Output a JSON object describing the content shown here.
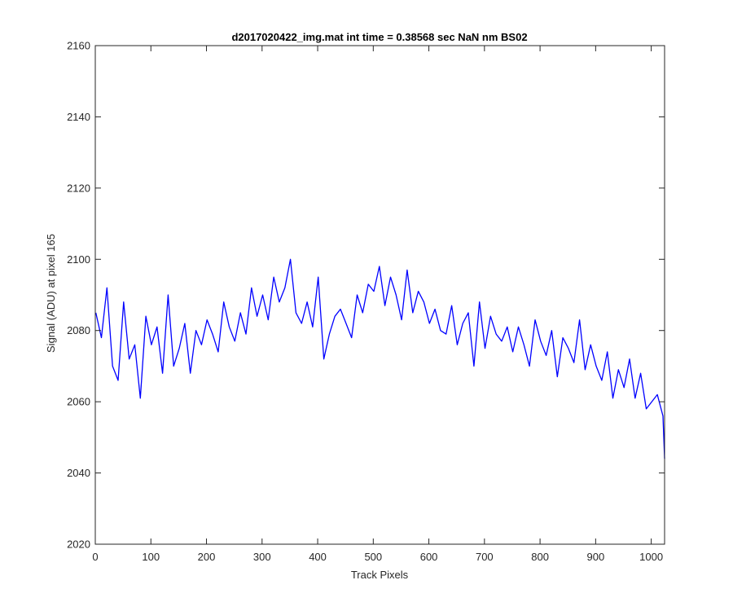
{
  "chart_data": {
    "type": "line",
    "title": "d2017020422_img.mat int time = 0.38568 sec  NaN nm BS02",
    "xlabel": "Track Pixels",
    "ylabel": "Signal (ADU) at pixel 165",
    "xlim": [
      0,
      1024
    ],
    "ylim": [
      2020,
      2160
    ],
    "xticks": [
      "0",
      "100",
      "200",
      "300",
      "400",
      "500",
      "600",
      "700",
      "800",
      "900",
      "1000"
    ],
    "yticks": [
      "2020",
      "2040",
      "2060",
      "2080",
      "2100",
      "2120",
      "2140",
      "2160"
    ],
    "grid": false,
    "legend": "none",
    "series_color": "#0000ff",
    "x": [
      1,
      11,
      21,
      31,
      41,
      51,
      61,
      71,
      81,
      91,
      101,
      111,
      121,
      131,
      141,
      151,
      161,
      171,
      181,
      191,
      201,
      211,
      221,
      231,
      241,
      251,
      261,
      271,
      281,
      291,
      301,
      311,
      321,
      331,
      341,
      351,
      361,
      371,
      381,
      391,
      401,
      411,
      421,
      431,
      441,
      451,
      461,
      471,
      481,
      491,
      501,
      511,
      521,
      531,
      541,
      551,
      561,
      571,
      581,
      591,
      601,
      611,
      621,
      631,
      641,
      651,
      661,
      671,
      681,
      691,
      701,
      711,
      721,
      731,
      741,
      751,
      761,
      771,
      781,
      791,
      801,
      811,
      821,
      831,
      841,
      851,
      861,
      871,
      881,
      891,
      901,
      911,
      921,
      931,
      941,
      951,
      961,
      971,
      981,
      991,
      1001,
      1011,
      1021,
      1024
    ],
    "series": [
      {
        "values": [
          2085,
          2078,
          2092,
          2070,
          2066,
          2088,
          2072,
          2076,
          2061,
          2084,
          2076,
          2081,
          2068,
          2090,
          2070,
          2075,
          2082,
          2068,
          2080,
          2076,
          2083,
          2079,
          2074,
          2088,
          2081,
          2077,
          2085,
          2079,
          2092,
          2084,
          2090,
          2083,
          2095,
          2088,
          2092,
          2100,
          2085,
          2082,
          2088,
          2081,
          2095,
          2072,
          2079,
          2084,
          2086,
          2082,
          2078,
          2090,
          2085,
          2093,
          2091,
          2098,
          2087,
          2095,
          2090,
          2083,
          2097,
          2085,
          2091,
          2088,
          2082,
          2086,
          2080,
          2079,
          2087,
          2076,
          2082,
          2085,
          2070,
          2088,
          2075,
          2084,
          2079,
          2077,
          2081,
          2074,
          2081,
          2076,
          2070,
          2083,
          2077,
          2073,
          2080,
          2067,
          2078,
          2075,
          2071,
          2083,
          2069,
          2076,
          2070,
          2066,
          2074,
          2061,
          2069,
          2064,
          2072,
          2061,
          2068,
          2058,
          2060,
          2062,
          2056,
          2044
        ]
      }
    ]
  }
}
